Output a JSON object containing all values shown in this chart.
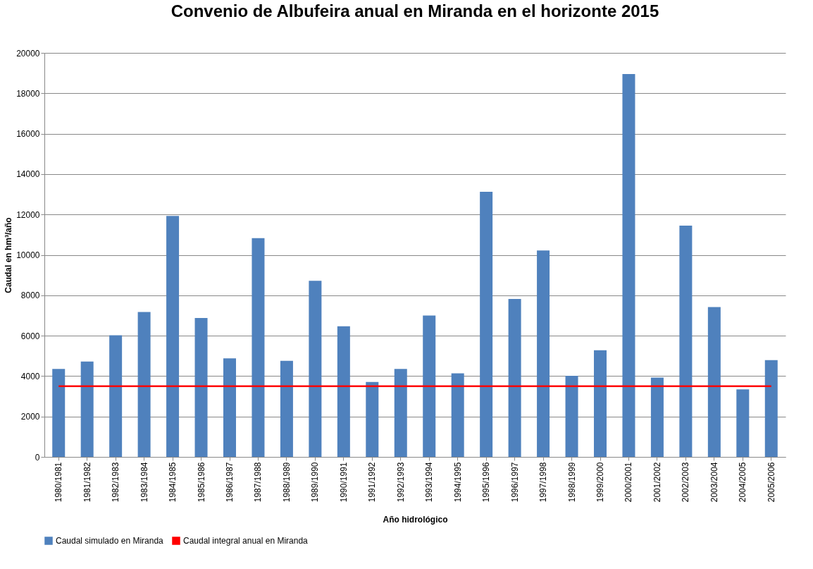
{
  "chart_data": {
    "type": "bar",
    "title": "Convenio de Albufeira anual en Miranda en el horizonte 2015",
    "xlabel": "Año hidrológico",
    "ylabel": "Caudal en hm³/año",
    "categories": [
      "1980/1981",
      "1981/1982",
      "1982/1983",
      "1983/1984",
      "1984/1985",
      "1985/1986",
      "1986/1987",
      "1987/1988",
      "1988/1989",
      "1989/1990",
      "1990/1991",
      "1991/1992",
      "1992/1993",
      "1993/1994",
      "1994/1995",
      "1995/1996",
      "1996/1997",
      "1997/1998",
      "1998/1999",
      "1999/2000",
      "2000/2001",
      "2001/2002",
      "2002/2003",
      "2003/2004",
      "2004/2005",
      "2005/2006"
    ],
    "series": [
      {
        "name": "Caudal simulado en Miranda",
        "color": "#4f81bd",
        "values": [
          4350,
          4720,
          6020,
          7170,
          11930,
          6880,
          4880,
          10830,
          4760,
          8720,
          6470,
          3710,
          4350,
          7000,
          4140,
          13120,
          7820,
          10220,
          4010,
          5280,
          18950,
          3930,
          11450,
          7420,
          3340,
          4790
        ]
      },
      {
        "name": "Caudal integral anual en Miranda",
        "type": "line",
        "color": "#ff0000",
        "values": [
          3500,
          3500,
          3500,
          3500,
          3500,
          3500,
          3500,
          3500,
          3500,
          3500,
          3500,
          3500,
          3500,
          3500,
          3500,
          3500,
          3500,
          3500,
          3500,
          3500,
          3500,
          3500,
          3500,
          3500,
          3500,
          3500
        ]
      }
    ],
    "ylim": [
      0,
      20000
    ],
    "yticks": [
      0,
      2000,
      4000,
      6000,
      8000,
      10000,
      12000,
      14000,
      16000,
      18000,
      20000
    ],
    "grid": "y",
    "legend": "bottom"
  }
}
